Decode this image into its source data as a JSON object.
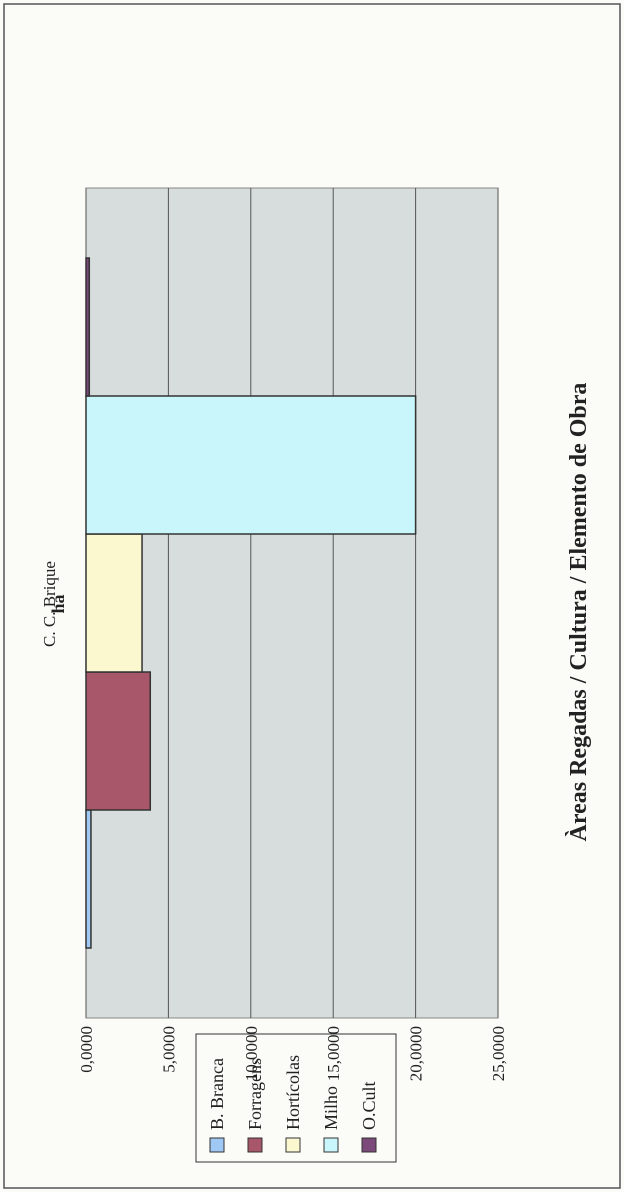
{
  "chart_data": {
    "type": "bar",
    "orientation": "horizontal",
    "title": "Àreas Regadas / Cultura / Elemento de Obra",
    "value_axis_label": "ha",
    "category_axis_label": "",
    "categories": [
      "C. C. Brique"
    ],
    "series": [
      {
        "name": "B. Branca",
        "values": [
          0.3
        ]
      },
      {
        "name": "Forragens",
        "values": [
          3.9
        ]
      },
      {
        "name": "Hortícolas",
        "values": [
          3.4
        ]
      },
      {
        "name": "Milho",
        "values": [
          20.0
        ]
      },
      {
        "name": "O.Cult",
        "values": [
          0.2
        ]
      }
    ],
    "ylim": [
      0,
      25
    ],
    "ticks": [
      "0,0000",
      "5,0000",
      "10,0000",
      "15,0000",
      "20,0000",
      "25,0000"
    ],
    "grid": true,
    "legend_position": "right",
    "series_colors": [
      "#9fc8f4",
      "#a8566a",
      "#fbf8d0",
      "#c8f6fb",
      "#7b4a7a"
    ]
  }
}
